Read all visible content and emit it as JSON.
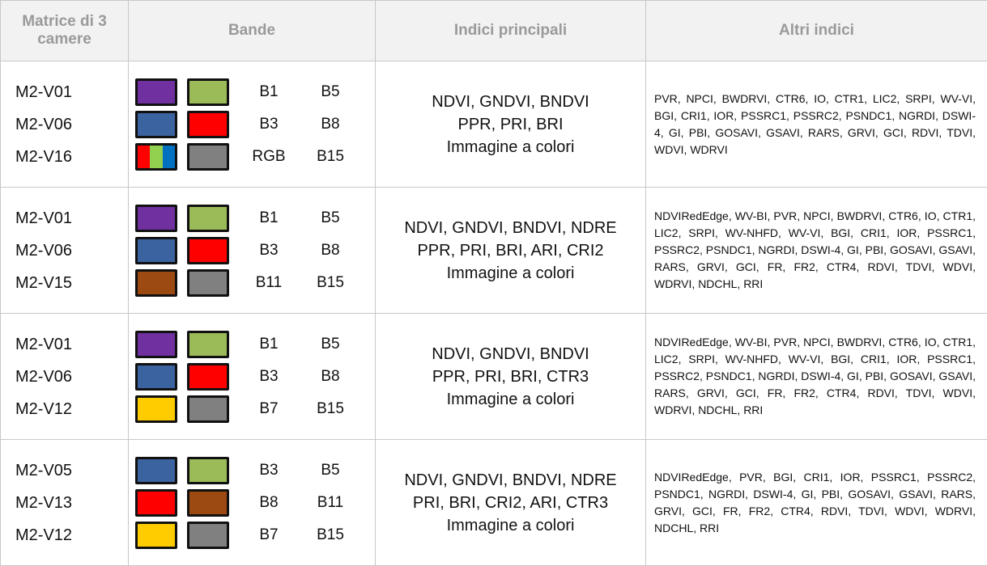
{
  "headers": {
    "camera": "Matrice di 3 camere",
    "bands": "Bande",
    "main_indices": "Indici principali",
    "other_indices": "Altri indici"
  },
  "colors": {
    "B1": "#7030a0",
    "B3": "#3a63a0",
    "B5": "#9bbb59",
    "B7": "#ffcc00",
    "B8": "#ff0000",
    "B11": "#9c4a12",
    "B15": "#808080",
    "RGB": [
      "#ff0000",
      "#92d050",
      "#0070c0"
    ]
  },
  "rows": [
    {
      "cameras": [
        "M2-V01",
        "M2-V06",
        "M2-V16"
      ],
      "bands": [
        [
          "B1",
          "B5"
        ],
        [
          "B3",
          "B8"
        ],
        [
          "RGB",
          "B15"
        ]
      ],
      "main": [
        "NDVI, GNDVI, BNDVI",
        "PPR, PRI, BRI",
        "Immagine a colori"
      ],
      "other": "PVR, NPCI, BWDRVI, CTR6, IO, CTR1, LIC2, SRPI, WV-VI, BGI, CRI1, IOR, PSSRC1, PSSRC2, PSNDC1, NGRDI, DSWI-4, GI, PBI, GOSAVI, GSAVI, RARS, GRVI, GCI, RDVI, TDVI, WDVI, WDRVI"
    },
    {
      "cameras": [
        "M2-V01",
        "M2-V06",
        "M2-V15"
      ],
      "bands": [
        [
          "B1",
          "B5"
        ],
        [
          "B3",
          "B8"
        ],
        [
          "B11",
          "B15"
        ]
      ],
      "main": [
        "NDVI, GNDVI, BNDVI, NDRE",
        "PPR, PRI, BRI, ARI, CRI2",
        "Immagine a colori"
      ],
      "other": "NDVIRedEdge, WV-BI, PVR, NPCI, BWDRVI, CTR6, IO, CTR1, LIC2, SRPI, WV-NHFD, WV-VI, BGI, CRI1, IOR, PSSRC1, PSSRC2, PSNDC1, NGRDI, DSWI-4, GI, PBI, GOSAVI, GSAVI, RARS, GRVI, GCI, FR, FR2, CTR4, RDVI, TDVI, WDVI, WDRVI, NDCHL, RRI"
    },
    {
      "cameras": [
        "M2-V01",
        "M2-V06",
        "M2-V12"
      ],
      "bands": [
        [
          "B1",
          "B5"
        ],
        [
          "B3",
          "B8"
        ],
        [
          "B7",
          "B15"
        ]
      ],
      "main": [
        "NDVI, GNDVI, BNDVI",
        "PPR, PRI, BRI, CTR3",
        "Immagine a colori"
      ],
      "other": "NDVIRedEdge, WV-BI, PVR, NPCI, BWDRVI, CTR6, IO, CTR1, LIC2, SRPI, WV-NHFD, WV-VI, BGI, CRI1, IOR, PSSRC1, PSSRC2, PSNDC1, NGRDI, DSWI-4, GI, PBI, GOSAVI, GSAVI, RARS, GRVI, GCI, FR, FR2, CTR4, RDVI, TDVI, WDVI, WDRVI, NDCHL, RRI"
    },
    {
      "cameras": [
        "M2-V05",
        "M2-V13",
        "M2-V12"
      ],
      "bands": [
        [
          "B3",
          "B5"
        ],
        [
          "B8",
          "B11"
        ],
        [
          "B7",
          "B15"
        ]
      ],
      "main": [
        "NDVI, GNDVI, BNDVI, NDRE",
        "PRI, BRI, CRI2, ARI, CTR3",
        "Immagine a colori"
      ],
      "other": "NDVIRedEdge, PVR, BGI, CRI1, IOR, PSSRC1, PSSRC2, PSNDC1, NGRDI, DSWI-4, GI, PBI, GOSAVI, GSAVI, RARS, GRVI, GCI, FR, FR2, CTR4, RDVI, TDVI, WDVI, WDRVI, NDCHL, RRI"
    }
  ]
}
